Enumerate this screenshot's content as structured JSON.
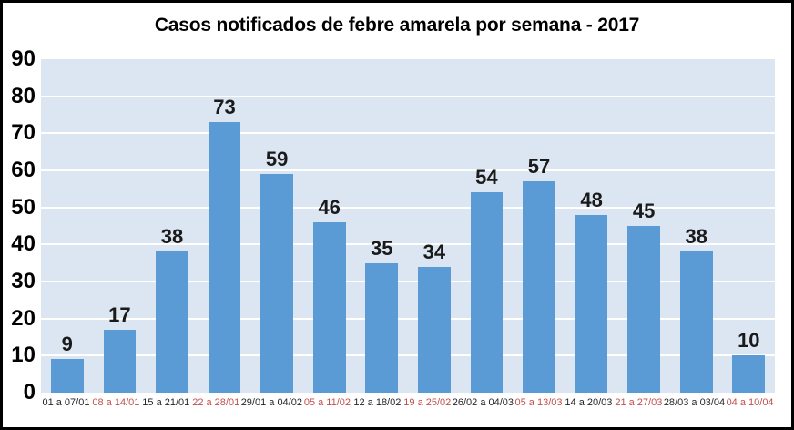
{
  "chart_data": {
    "type": "bar",
    "title": "Casos notificados de febre amarela por semana - 2017",
    "categories": [
      "01 a 07/01",
      "08 a 14/01",
      "15 a 21/01",
      "22 a 28/01",
      "29/01 a 04/02",
      "05 a 11/02",
      "12 a 18/02",
      "19 a 25/02",
      "26/02 a 04/03",
      "05 a 13/03",
      "14 a 20/03",
      "21 a 27/03",
      "28/03 a 03/04",
      "04 a 10/04"
    ],
    "values": [
      9,
      17,
      38,
      73,
      59,
      46,
      35,
      34,
      54,
      57,
      48,
      45,
      38,
      10
    ],
    "category_label_colors": [
      "black",
      "red",
      "black",
      "red",
      "black",
      "red",
      "black",
      "red",
      "black",
      "red",
      "black",
      "red",
      "black",
      "red"
    ],
    "xlabel": "",
    "ylabel": "",
    "ylim": [
      0,
      90
    ],
    "y_ticks": [
      0,
      10,
      20,
      30,
      40,
      50,
      60,
      70,
      80,
      90
    ],
    "grid": "horizontal",
    "legend": "none",
    "colors": {
      "bar": "#5B9BD5",
      "plot_bg": "#DCE6F2",
      "gridline": "#FFFFFF",
      "xlabel_black": "#262626",
      "xlabel_red": "#C0504D",
      "value_label": "#1A1A1A",
      "title": "#000000",
      "frame_border": "#000000"
    }
  }
}
